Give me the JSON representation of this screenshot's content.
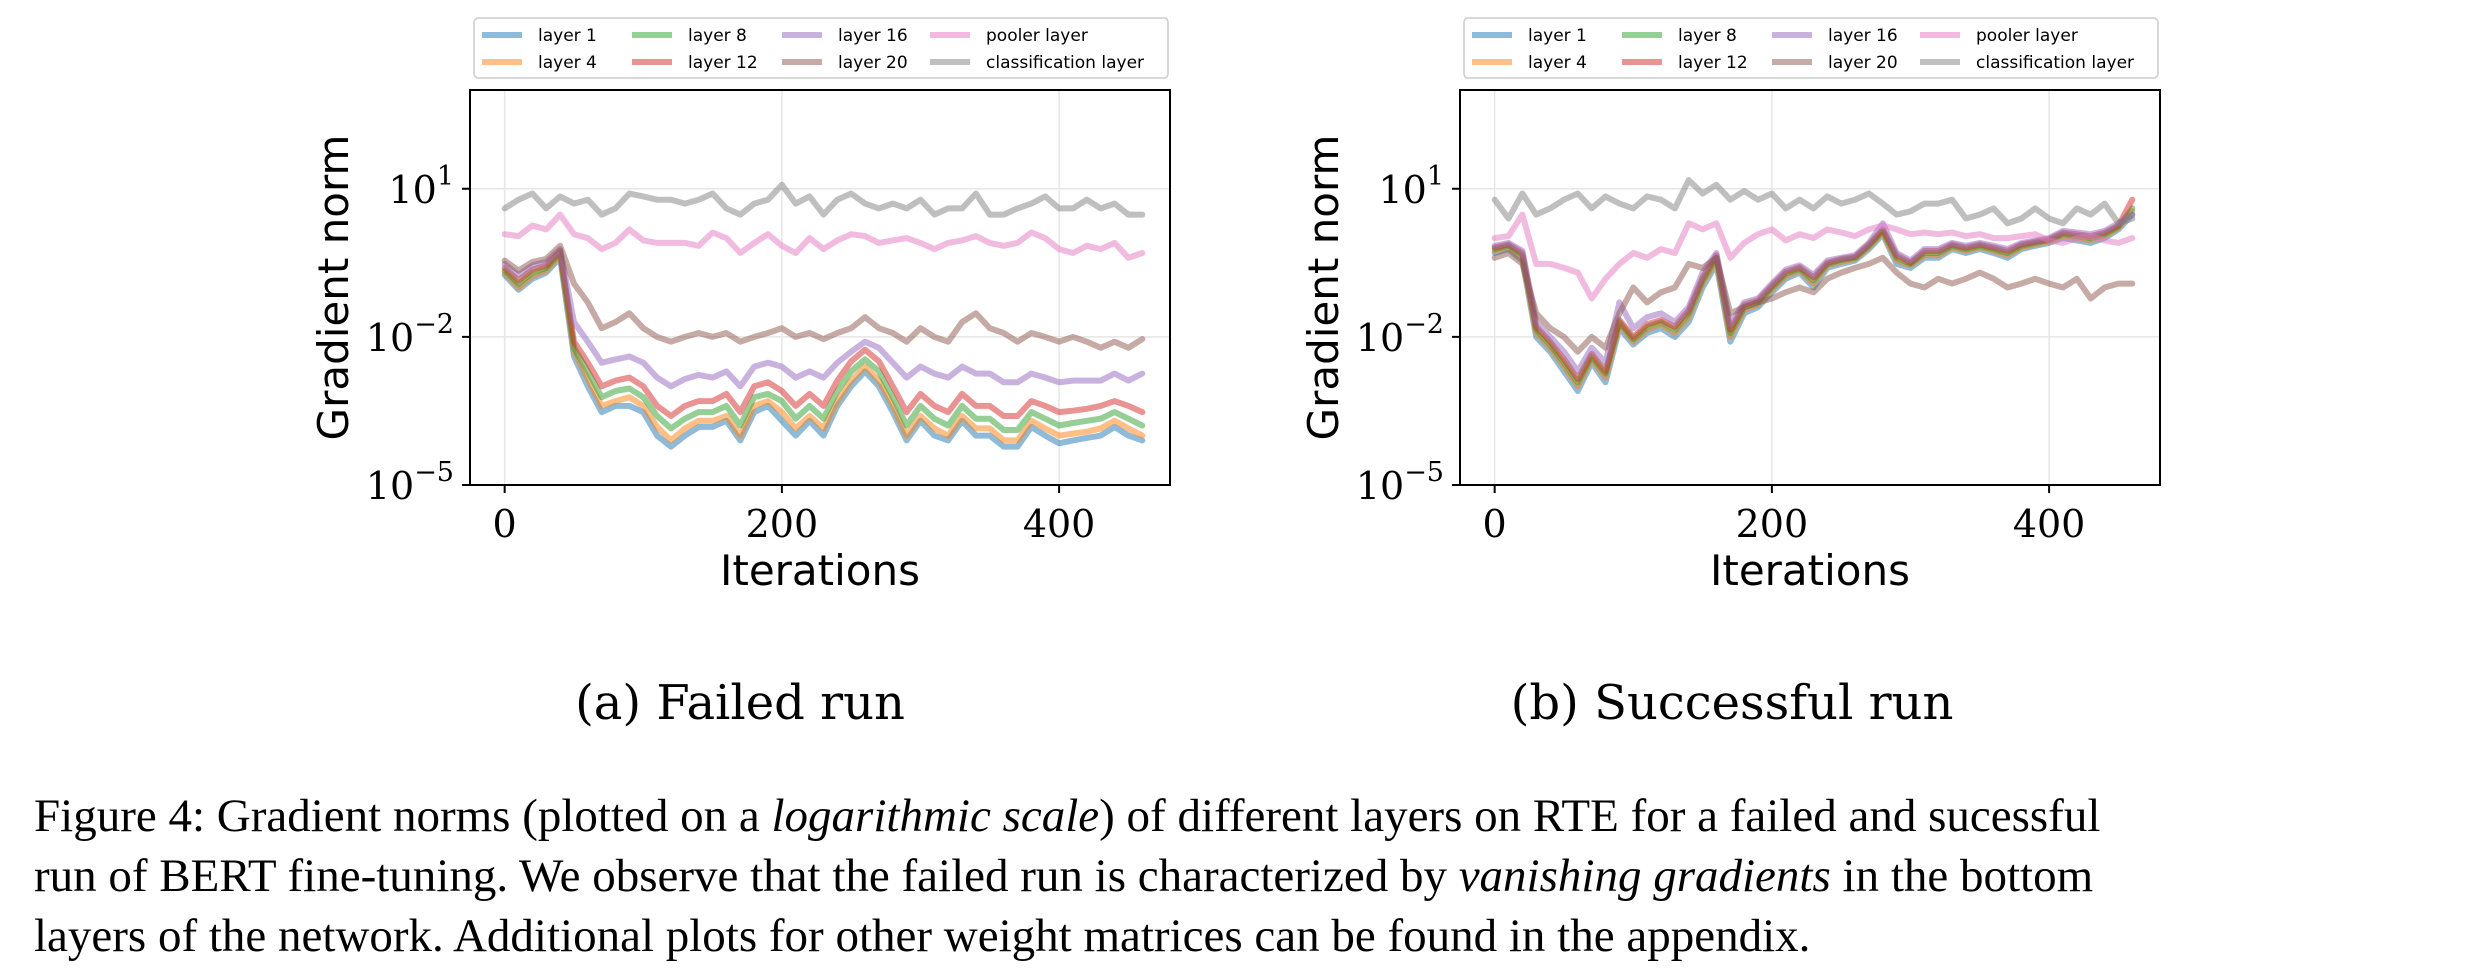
{
  "figure": {
    "subcaptions": [
      "(a) Failed run",
      "(b) Successful run"
    ],
    "caption": {
      "lines": [
        [
          {
            "t": "Figure 4: Gradient norms (plotted on a "
          },
          {
            "t": "logarithmic scale",
            "i": true
          },
          {
            "t": ") of different layers on RTE for a failed and sucessful"
          }
        ],
        [
          {
            "t": "run of BERT fine-tuning. We observe that the failed run is characterized by "
          },
          {
            "t": "vanishing gradients",
            "i": true
          },
          {
            "t": " in the bottom"
          }
        ],
        [
          {
            "t": "layers of the network. Additional plots for other weight matrices can be found in the appendix."
          }
        ]
      ]
    }
  },
  "chart_data": [
    {
      "type": "line",
      "xlabel": "Iterations",
      "ylabel": "Gradient norm",
      "yscale": "log",
      "ylim": [
        1e-05,
        1000
      ],
      "xlim": [
        -25,
        480
      ],
      "xticks": [
        0,
        200,
        400
      ],
      "yticks": [
        {
          "value": 10,
          "label": "10^1"
        },
        {
          "value": 0.01,
          "label": "10^-2"
        },
        {
          "value": 1e-05,
          "label": "10^-5"
        }
      ],
      "grid": true,
      "legend_position": "top",
      "x": [
        0,
        10,
        20,
        30,
        40,
        50,
        60,
        70,
        80,
        90,
        100,
        110,
        120,
        130,
        140,
        150,
        160,
        170,
        180,
        190,
        200,
        210,
        220,
        230,
        240,
        250,
        260,
        270,
        280,
        290,
        300,
        310,
        320,
        330,
        340,
        350,
        360,
        370,
        380,
        390,
        400,
        410,
        420,
        430,
        440,
        450,
        460
      ],
      "series": [
        {
          "name": "layer 1",
          "color": "#1f77b4",
          "values": [
            0.18,
            0.09,
            0.15,
            0.2,
            0.4,
            0.004,
            0.001,
            0.0003,
            0.0004,
            0.0004,
            0.0003,
            0.0001,
            6e-05,
            0.0001,
            0.00015,
            0.00015,
            0.0002,
            8e-05,
            0.0003,
            0.0004,
            0.0002,
            0.0001,
            0.0002,
            0.0001,
            0.0004,
            0.001,
            0.002,
            0.001,
            0.0003,
            8e-05,
            0.0002,
            0.0001,
            8e-05,
            0.0002,
            0.0001,
            0.0001,
            6e-05,
            6e-05,
            0.00015,
            0.0001,
            7e-05,
            8e-05,
            9e-05,
            0.0001,
            0.00015,
            0.0001,
            8e-05
          ]
        },
        {
          "name": "layer 4",
          "color": "#ff7f0e",
          "values": [
            0.2,
            0.1,
            0.17,
            0.22,
            0.45,
            0.005,
            0.0014,
            0.0004,
            0.0005,
            0.0006,
            0.0004,
            0.00015,
            8e-05,
            0.00014,
            0.0002,
            0.0002,
            0.00025,
            0.0001,
            0.0004,
            0.0005,
            0.0003,
            0.00014,
            0.00025,
            0.00014,
            0.0005,
            0.0013,
            0.0025,
            0.0013,
            0.0004,
            0.0001,
            0.00025,
            0.00014,
            0.0001,
            0.00025,
            0.00014,
            0.00014,
            8e-05,
            8e-05,
            0.0002,
            0.00014,
            0.0001,
            0.00011,
            0.00012,
            0.00014,
            0.0002,
            0.00014,
            0.0001
          ]
        },
        {
          "name": "layer 8",
          "color": "#2ca02c",
          "values": [
            0.22,
            0.12,
            0.2,
            0.25,
            0.5,
            0.006,
            0.002,
            0.0006,
            0.0008,
            0.0009,
            0.0006,
            0.00025,
            0.00014,
            0.00022,
            0.0003,
            0.0003,
            0.0004,
            0.00016,
            0.0006,
            0.0007,
            0.0005,
            0.00022,
            0.0004,
            0.00022,
            0.0008,
            0.002,
            0.0035,
            0.002,
            0.0006,
            0.00016,
            0.0004,
            0.00022,
            0.00016,
            0.0004,
            0.00022,
            0.00022,
            0.00013,
            0.00013,
            0.0003,
            0.00022,
            0.00016,
            0.00018,
            0.0002,
            0.00022,
            0.0003,
            0.00022,
            0.00016
          ]
        },
        {
          "name": "layer 12",
          "color": "#d62728",
          "values": [
            0.25,
            0.14,
            0.23,
            0.28,
            0.55,
            0.008,
            0.003,
            0.001,
            0.0013,
            0.0015,
            0.001,
            0.0004,
            0.00025,
            0.0004,
            0.0005,
            0.0005,
            0.0007,
            0.0003,
            0.001,
            0.0012,
            0.0008,
            0.0004,
            0.0007,
            0.0004,
            0.0013,
            0.0032,
            0.0055,
            0.0032,
            0.001,
            0.0003,
            0.0007,
            0.0004,
            0.0003,
            0.0007,
            0.0004,
            0.0004,
            0.00025,
            0.00025,
            0.0005,
            0.0004,
            0.0003,
            0.00032,
            0.00035,
            0.0004,
            0.0005,
            0.0004,
            0.0003
          ]
        },
        {
          "name": "layer 16",
          "color": "#9467bd",
          "values": [
            0.3,
            0.18,
            0.28,
            0.33,
            0.6,
            0.02,
            0.008,
            0.003,
            0.0035,
            0.004,
            0.003,
            0.0015,
            0.001,
            0.0014,
            0.0017,
            0.0015,
            0.002,
            0.001,
            0.0025,
            0.003,
            0.0025,
            0.0015,
            0.002,
            0.0015,
            0.003,
            0.005,
            0.008,
            0.006,
            0.003,
            0.0015,
            0.0025,
            0.0018,
            0.0015,
            0.0025,
            0.0018,
            0.0018,
            0.0012,
            0.0012,
            0.0018,
            0.0015,
            0.0012,
            0.0013,
            0.0013,
            0.0013,
            0.0018,
            0.0013,
            0.0018
          ]
        },
        {
          "name": "layer 20",
          "color": "#8c564b",
          "values": [
            0.35,
            0.22,
            0.33,
            0.38,
            0.7,
            0.12,
            0.05,
            0.015,
            0.02,
            0.03,
            0.015,
            0.01,
            0.008,
            0.01,
            0.012,
            0.01,
            0.012,
            0.008,
            0.01,
            0.012,
            0.015,
            0.01,
            0.012,
            0.009,
            0.012,
            0.015,
            0.025,
            0.015,
            0.012,
            0.008,
            0.015,
            0.01,
            0.008,
            0.02,
            0.03,
            0.015,
            0.012,
            0.008,
            0.012,
            0.01,
            0.008,
            0.01,
            0.008,
            0.006,
            0.008,
            0.006,
            0.009
          ]
        },
        {
          "name": "pooler layer",
          "color": "#e377c2",
          "values": [
            1.2,
            1.1,
            1.8,
            1.5,
            3,
            1.2,
            1,
            0.6,
            0.8,
            1.5,
            0.9,
            0.8,
            0.8,
            0.8,
            0.7,
            1.3,
            1.0,
            0.5,
            0.8,
            1.2,
            0.7,
            0.5,
            1,
            0.6,
            0.9,
            1.2,
            1.1,
            0.8,
            0.9,
            1,
            0.8,
            0.6,
            0.8,
            0.9,
            1.1,
            0.8,
            0.7,
            0.8,
            1.3,
            1.0,
            0.6,
            0.5,
            0.7,
            0.6,
            0.8,
            0.4,
            0.5
          ]
        },
        {
          "name": "classification layer",
          "color": "#7f7f7f",
          "values": [
            4,
            6,
            8,
            4,
            7,
            5,
            6,
            3,
            4,
            8,
            7,
            6,
            6,
            5,
            6,
            8,
            4,
            3,
            5,
            6,
            12,
            5,
            7,
            3,
            6,
            8,
            5,
            4,
            5,
            4,
            6,
            3,
            4,
            4,
            8,
            3,
            3,
            4,
            5,
            7,
            4,
            4,
            6,
            4,
            5,
            3,
            3
          ]
        }
      ]
    },
    {
      "type": "line",
      "xlabel": "Iterations",
      "ylabel": "Gradient norm",
      "yscale": "log",
      "ylim": [
        1e-05,
        1000
      ],
      "xlim": [
        -25,
        480
      ],
      "xticks": [
        0,
        200,
        400
      ],
      "yticks": [
        {
          "value": 10,
          "label": "10^1"
        },
        {
          "value": 0.01,
          "label": "10^-2"
        },
        {
          "value": 1e-05,
          "label": "10^-5"
        }
      ],
      "grid": true,
      "legend_position": "top",
      "x": [
        0,
        10,
        20,
        30,
        40,
        50,
        60,
        70,
        80,
        90,
        100,
        110,
        120,
        130,
        140,
        150,
        160,
        170,
        180,
        190,
        200,
        210,
        220,
        230,
        240,
        250,
        260,
        270,
        280,
        290,
        300,
        310,
        320,
        330,
        340,
        350,
        360,
        370,
        380,
        390,
        400,
        410,
        420,
        430,
        440,
        450,
        460
      ],
      "series": [
        {
          "name": "layer 1",
          "color": "#1f77b4",
          "values": [
            0.5,
            0.6,
            0.35,
            0.01,
            0.005,
            0.002,
            0.0008,
            0.003,
            0.0012,
            0.015,
            0.007,
            0.012,
            0.015,
            0.01,
            0.02,
            0.1,
            0.3,
            0.008,
            0.03,
            0.04,
            0.08,
            0.15,
            0.2,
            0.1,
            0.25,
            0.3,
            0.35,
            0.6,
            1.2,
            0.3,
            0.25,
            0.4,
            0.4,
            0.6,
            0.5,
            0.6,
            0.5,
            0.4,
            0.6,
            0.7,
            0.8,
            1,
            0.9,
            0.8,
            1,
            1.5,
            3
          ]
        },
        {
          "name": "layer 4",
          "color": "#ff7f0e",
          "values": [
            0.55,
            0.65,
            0.4,
            0.012,
            0.006,
            0.0025,
            0.001,
            0.0035,
            0.0015,
            0.018,
            0.008,
            0.014,
            0.018,
            0.012,
            0.025,
            0.12,
            0.35,
            0.01,
            0.035,
            0.045,
            0.09,
            0.17,
            0.22,
            0.12,
            0.28,
            0.33,
            0.38,
            0.65,
            1.3,
            0.35,
            0.28,
            0.45,
            0.45,
            0.65,
            0.55,
            0.65,
            0.55,
            0.45,
            0.65,
            0.75,
            0.85,
            1.1,
            1,
            0.9,
            1.1,
            1.6,
            3.5
          ]
        },
        {
          "name": "layer 8",
          "color": "#2ca02c",
          "values": [
            0.6,
            0.7,
            0.45,
            0.014,
            0.007,
            0.003,
            0.0012,
            0.004,
            0.0018,
            0.02,
            0.009,
            0.016,
            0.02,
            0.014,
            0.03,
            0.14,
            0.4,
            0.012,
            0.04,
            0.05,
            0.1,
            0.19,
            0.24,
            0.14,
            0.3,
            0.36,
            0.4,
            0.7,
            1.4,
            0.4,
            0.3,
            0.5,
            0.5,
            0.7,
            0.6,
            0.7,
            0.6,
            0.5,
            0.7,
            0.8,
            0.9,
            1.2,
            1.1,
            1,
            1.2,
            1.7,
            4
          ]
        },
        {
          "name": "layer 12",
          "color": "#d62728",
          "values": [
            0.65,
            0.75,
            0.5,
            0.016,
            0.008,
            0.0035,
            0.0014,
            0.0045,
            0.002,
            0.022,
            0.01,
            0.018,
            0.022,
            0.016,
            0.035,
            0.16,
            0.45,
            0.014,
            0.045,
            0.055,
            0.11,
            0.21,
            0.26,
            0.16,
            0.32,
            0.38,
            0.42,
            0.75,
            1.5,
            0.45,
            0.32,
            0.55,
            0.55,
            0.75,
            0.65,
            0.75,
            0.65,
            0.55,
            0.75,
            0.85,
            0.95,
            1.3,
            1.2,
            1.1,
            1.3,
            1.8,
            6
          ]
        },
        {
          "name": "layer 16",
          "color": "#9467bd",
          "values": [
            0.7,
            0.8,
            0.55,
            0.02,
            0.01,
            0.005,
            0.002,
            0.006,
            0.003,
            0.05,
            0.015,
            0.025,
            0.03,
            0.02,
            0.04,
            0.2,
            0.5,
            0.018,
            0.05,
            0.06,
            0.12,
            0.23,
            0.28,
            0.18,
            0.35,
            0.4,
            0.45,
            0.8,
            2,
            0.5,
            0.35,
            0.6,
            0.6,
            0.8,
            0.7,
            0.8,
            0.7,
            0.6,
            0.8,
            0.9,
            1,
            1.4,
            1.3,
            1.2,
            1.4,
            2,
            3
          ]
        },
        {
          "name": "layer 20",
          "color": "#8c564b",
          "values": [
            0.4,
            0.5,
            0.3,
            0.03,
            0.015,
            0.01,
            0.005,
            0.01,
            0.006,
            0.03,
            0.1,
            0.05,
            0.08,
            0.1,
            0.3,
            0.25,
            0.4,
            0.03,
            0.04,
            0.05,
            0.06,
            0.08,
            0.1,
            0.08,
            0.15,
            0.2,
            0.25,
            0.3,
            0.4,
            0.2,
            0.12,
            0.1,
            0.15,
            0.12,
            0.15,
            0.2,
            0.15,
            0.1,
            0.12,
            0.15,
            0.12,
            0.1,
            0.15,
            0.06,
            0.1,
            0.12,
            0.12
          ]
        },
        {
          "name": "pooler layer",
          "color": "#e377c2",
          "values": [
            1,
            1.1,
            3,
            0.3,
            0.3,
            0.25,
            0.2,
            0.06,
            0.15,
            0.3,
            0.5,
            0.4,
            0.6,
            0.5,
            2,
            1.5,
            2,
            0.4,
            0.8,
            1.2,
            1.5,
            0.9,
            1.2,
            1,
            1.5,
            1.3,
            1.1,
            1.5,
            1.8,
            1.5,
            1.2,
            1.3,
            1.2,
            1.3,
            1.1,
            1.2,
            1,
            1,
            1.1,
            1.2,
            0.9,
            0.8,
            1,
            1.1,
            0.9,
            0.8,
            1
          ]
        },
        {
          "name": "classification layer",
          "color": "#7f7f7f",
          "values": [
            6,
            2.5,
            8,
            3,
            4,
            6,
            8,
            4,
            7,
            5,
            4,
            7,
            6,
            4,
            15,
            8,
            12,
            6,
            9,
            6,
            8,
            4,
            6,
            4,
            7,
            5,
            6,
            8,
            5,
            3,
            3.5,
            5,
            5,
            6,
            2.5,
            3,
            4,
            2,
            2.5,
            4,
            2.5,
            2,
            4,
            3,
            5,
            2,
            2.5
          ]
        }
      ]
    }
  ]
}
